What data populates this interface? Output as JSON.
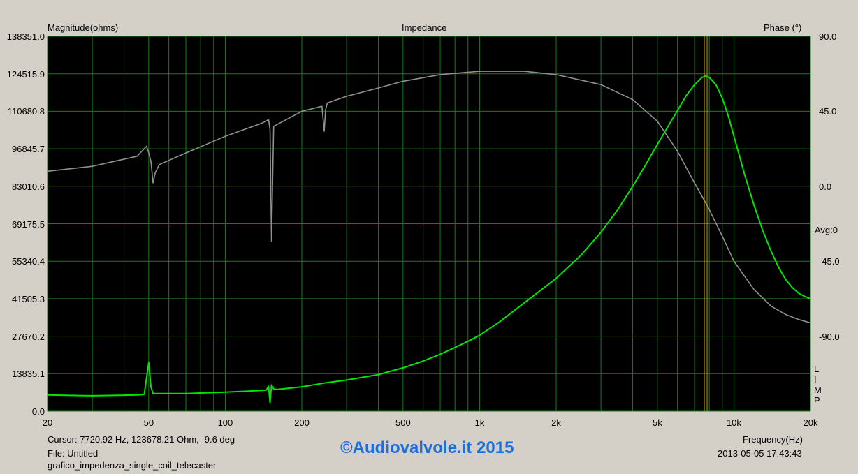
{
  "chart_data": {
    "type": "line",
    "title": "Impedance",
    "ylabel": "Magnitude(ohms)",
    "y2label": "Phase (°)",
    "xlabel": "Frequency(Hz)",
    "xscale": "log",
    "xlim": [
      20,
      20000
    ],
    "ylim": [
      0,
      138351.0
    ],
    "y2lim": [
      -135,
      90
    ],
    "x_ticks": [
      "20",
      "50",
      "100",
      "200",
      "500",
      "1k",
      "2k",
      "5k",
      "10k",
      "20k"
    ],
    "y_ticks": [
      "138351.0",
      "124515.9",
      "110680.8",
      "96845.7",
      "83010.6",
      "69175.5",
      "55340.4",
      "41505.3",
      "27670.2",
      "13835.1",
      "0.0"
    ],
    "y2_ticks": [
      "90.0",
      "45.0",
      "0.0",
      "-45.0",
      "-90.0"
    ],
    "cursor_frequency": 7720.92,
    "series": [
      {
        "name": "Magnitude",
        "color": "#00e600",
        "x": [
          20,
          30,
          40,
          45,
          48,
          50,
          51,
          52,
          55,
          70,
          100,
          130,
          145,
          148,
          150,
          152,
          155,
          160,
          200,
          250,
          300,
          400,
          500,
          600,
          700,
          800,
          900,
          1000,
          1200,
          1500,
          2000,
          2500,
          3000,
          3500,
          4000,
          4500,
          5000,
          5500,
          6000,
          6500,
          7000,
          7500,
          7721,
          8000,
          8500,
          9000,
          9500,
          10000,
          11000,
          12000,
          13000,
          14000,
          15000,
          16000,
          17000,
          18000,
          19000,
          20000
        ],
        "y": [
          6000,
          5700,
          5900,
          6000,
          6200,
          18000,
          9000,
          6500,
          6500,
          6500,
          7000,
          7500,
          7800,
          9200,
          3000,
          9700,
          8200,
          8000,
          9000,
          10500,
          11500,
          13500,
          16000,
          18500,
          21000,
          23500,
          25800,
          28000,
          33000,
          40000,
          49000,
          57500,
          66000,
          74500,
          83000,
          91000,
          98500,
          105000,
          111000,
          116500,
          120500,
          123200,
          123678,
          123200,
          120500,
          115500,
          109000,
          101500,
          87500,
          76000,
          66500,
          59000,
          53000,
          48500,
          45500,
          43500,
          42300,
          41505
        ]
      },
      {
        "name": "Phase",
        "color": "#909090",
        "x": [
          20,
          30,
          45,
          49,
          50,
          51,
          52,
          53,
          55,
          70,
          100,
          140,
          148,
          150,
          152,
          155,
          200,
          240,
          245,
          248,
          252,
          300,
          400,
          500,
          700,
          1000,
          1500,
          2000,
          3000,
          4000,
          5000,
          6000,
          7000,
          7721,
          8000,
          9000,
          10000,
          12000,
          14000,
          16000,
          18000,
          20000
        ],
        "y": [
          9,
          12,
          18,
          24,
          20,
          15,
          2,
          8,
          13,
          20,
          30,
          38,
          40,
          34,
          -33,
          36,
          45,
          48,
          33,
          46,
          50,
          54,
          59,
          63,
          67,
          69,
          69,
          67,
          61,
          52,
          39,
          21,
          2,
          -9.6,
          -14,
          -30,
          -45,
          -62,
          -72,
          -77,
          -80,
          -82
        ]
      }
    ]
  },
  "cursor_text": "Cursor: 7720.92 Hz, 123678.21 Ohm, -9.6 deg",
  "file_text": "File: Untitled",
  "filename_text": "grafico_impedenza_single_coil_telecaster",
  "frequency_label": "Frequency(Hz)",
  "timestamp": "2013-05-05 17:43:43",
  "avg_label": "Avg:0",
  "limp_letters": [
    "L",
    "I",
    "M",
    "P"
  ],
  "watermark": "©Audiovalvole.it 2015"
}
